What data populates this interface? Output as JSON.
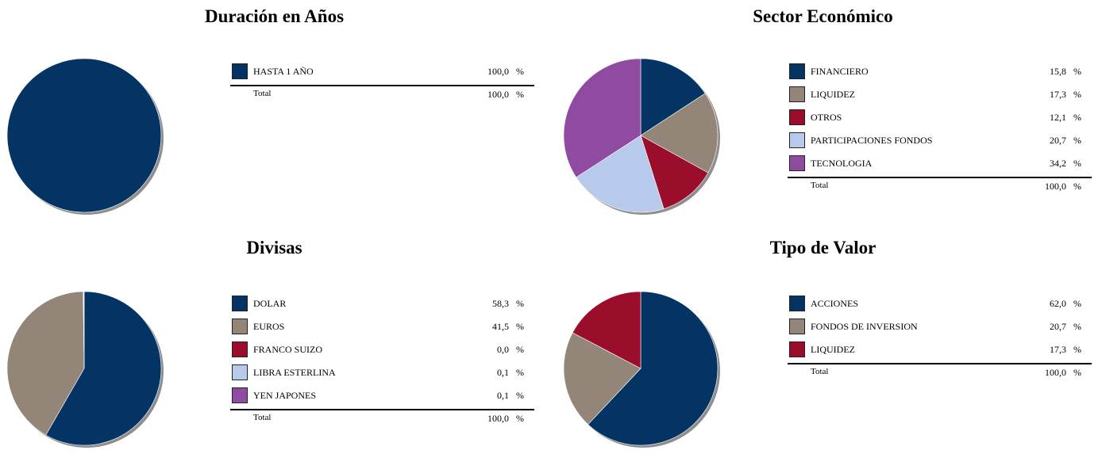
{
  "chart_data": [
    {
      "type": "pie",
      "title": "Duración en Años",
      "categories": [
        "HASTA 1 AÑO"
      ],
      "values": [
        100.0
      ],
      "value_labels": [
        "100,0"
      ],
      "colors": [
        "#033463"
      ],
      "total_label": "Total",
      "total_value": "100,0",
      "unit": "%"
    },
    {
      "type": "pie",
      "title": "Sector Económico",
      "categories": [
        "FINANCIERO",
        "LIQUIDEZ",
        "OTROS",
        "PARTICIPACIONES FONDOS",
        "TECNOLOGIA"
      ],
      "values": [
        15.8,
        17.3,
        12.1,
        20.7,
        34.2
      ],
      "value_labels": [
        "15,8",
        "17,3",
        "12,1",
        "20,7",
        "34,2"
      ],
      "colors": [
        "#033463",
        "#938679",
        "#9b0e2b",
        "#b7caeb",
        "#8f4ba0"
      ],
      "total_label": "Total",
      "total_value": "100,0",
      "unit": "%"
    },
    {
      "type": "pie",
      "title": "Divisas",
      "categories": [
        "DOLAR",
        "EUROS",
        "FRANCO SUIZO",
        "LIBRA ESTERLINA",
        "YEN JAPONES"
      ],
      "values": [
        58.3,
        41.5,
        0.0,
        0.1,
        0.1
      ],
      "value_labels": [
        "58,3",
        "41,5",
        "0,0",
        "0,1",
        "0,1"
      ],
      "colors": [
        "#033463",
        "#938679",
        "#9b0e2b",
        "#b7caeb",
        "#8f4ba0"
      ],
      "total_label": "Total",
      "total_value": "100,0",
      "unit": "%"
    },
    {
      "type": "pie",
      "title": "Tipo de Valor",
      "categories": [
        "ACCIONES",
        "FONDOS DE INVERSION",
        "LIQUIDEZ"
      ],
      "values": [
        62.0,
        20.7,
        17.3
      ],
      "value_labels": [
        "62,0",
        "20,7",
        "17,3"
      ],
      "colors": [
        "#033463",
        "#938679",
        "#9b0e2b"
      ],
      "total_label": "Total",
      "total_value": "100,0",
      "unit": "%"
    }
  ]
}
